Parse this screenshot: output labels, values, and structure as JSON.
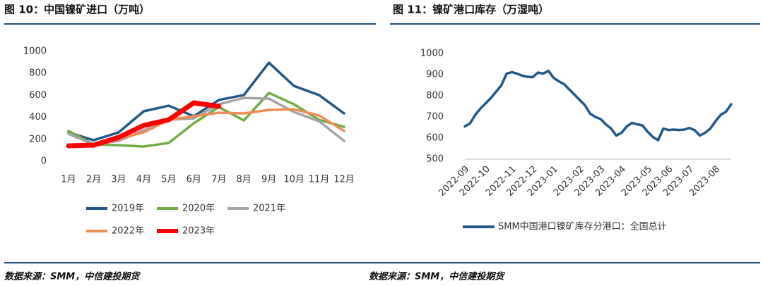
{
  "charts": [
    {
      "chart_data": {
        "type": "line",
        "title": "图 10：中国镍矿进口（万吨）",
        "categories": [
          "1月",
          "2月",
          "3月",
          "4月",
          "5月",
          "6月",
          "7月",
          "8月",
          "9月",
          "10月",
          "11月",
          "12月"
        ],
        "ylim": [
          0,
          1000
        ],
        "yticks": [
          0,
          200,
          400,
          600,
          800,
          1000
        ],
        "grid": false,
        "series": [
          {
            "name": "2019年",
            "color": "#1f5889",
            "values": [
              263,
              192,
              263,
              455,
              506,
              410,
              558,
              603,
              897,
              686,
              603,
              436
            ]
          },
          {
            "name": "2020年",
            "color": "#70ad47",
            "values": [
              276,
              154,
              147,
              135,
              167,
              346,
              494,
              372,
              622,
              519,
              378,
              314
            ]
          },
          {
            "name": "2021年",
            "color": "#a5a5a5",
            "values": [
              250,
              154,
              186,
              282,
              378,
              391,
              519,
              577,
              570,
              449,
              365,
              186
            ]
          },
          {
            "name": "2022年",
            "color": "#f08c55",
            "values": [
              141,
              141,
              205,
              263,
              378,
              410,
              442,
              436,
              468,
              474,
              417,
              276
            ]
          },
          {
            "name": "2023年",
            "color": "#ff0000",
            "values": [
              141,
              147,
              218,
              327,
              378,
              532,
              500,
              null,
              null,
              null,
              null,
              null
            ]
          }
        ]
      },
      "source": "数据来源：SMM，中信建投期货"
    },
    {
      "chart_data": {
        "type": "line",
        "title": "图 11：镍矿港口库存（万湿吨）",
        "categories": [
          "2022-09",
          null,
          null,
          null,
          "2022-10",
          null,
          null,
          null,
          null,
          "2022-11",
          null,
          null,
          null,
          "2022-12",
          null,
          null,
          null,
          "2023-01",
          null,
          null,
          null,
          null,
          "2023-02",
          null,
          null,
          null,
          "2023-03",
          null,
          null,
          null,
          "2023-04",
          null,
          null,
          null,
          null,
          "2023-05",
          null,
          null,
          null,
          "2023-06",
          null,
          null,
          null,
          "2023-07",
          null,
          null,
          null,
          null,
          "2023-08",
          null,
          null,
          null
        ],
        "ylim": [
          500,
          1000
        ],
        "yticks": [
          500,
          600,
          700,
          800,
          900,
          1000
        ],
        "grid": false,
        "series": [
          {
            "name": "SMM中国港口镍矿库存分港口：全国总计",
            "color": "#1f5889",
            "values": [
              655,
              670,
              710,
              740,
              765,
              790,
              820,
              850,
              905,
              912,
              905,
              895,
              890,
              888,
              910,
              905,
              918,
              885,
              868,
              855,
              830,
              805,
              780,
              755,
              715,
              700,
              690,
              665,
              645,
              612,
              625,
              655,
              672,
              665,
              660,
              630,
              605,
              590,
              645,
              638,
              640,
              638,
              640,
              648,
              637,
              612,
              625,
              645,
              680,
              710,
              725,
              760
            ]
          }
        ]
      },
      "source": "数据来源：SMM，中信建投期货"
    }
  ]
}
